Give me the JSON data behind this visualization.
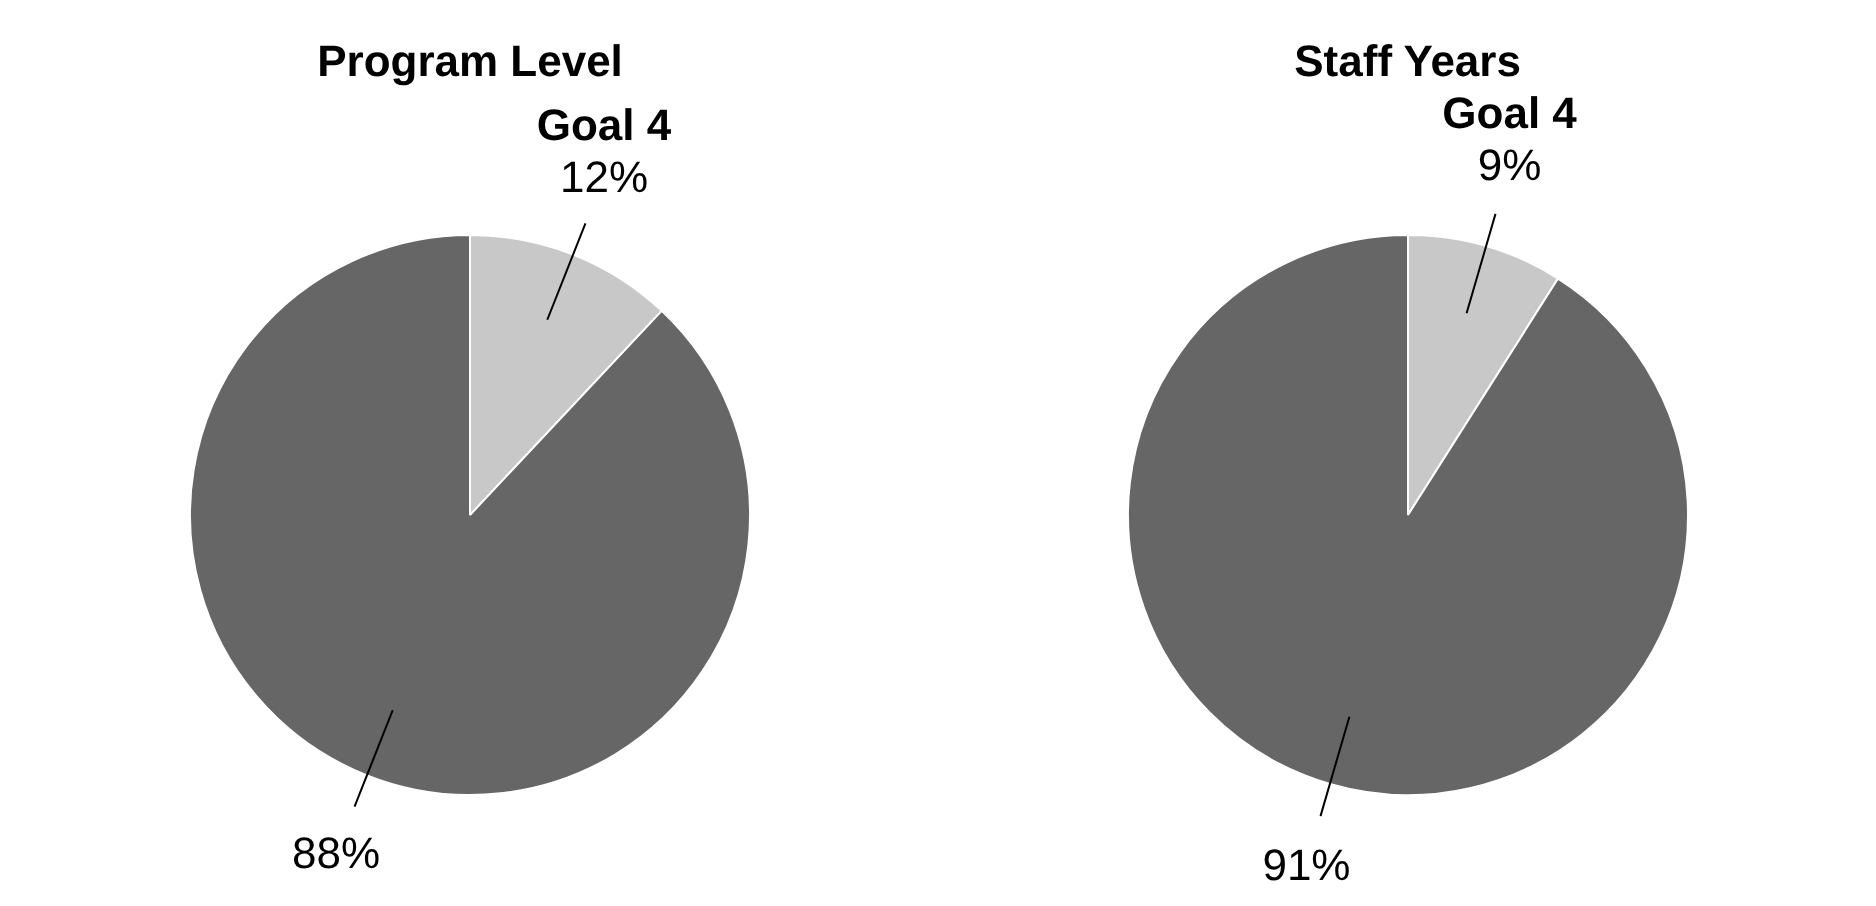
{
  "chart_data": [
    {
      "type": "pie",
      "title": "Program Level",
      "categories": [
        "Goal 4",
        null
      ],
      "values": [
        12,
        88
      ],
      "colors": [
        "#c8c8c8",
        "#666666"
      ],
      "value_labels": [
        "12%",
        "88%"
      ]
    },
    {
      "type": "pie",
      "title": "Staff Years",
      "categories": [
        "Goal 4",
        null
      ],
      "values": [
        9,
        91
      ],
      "colors": [
        "#c8c8c8",
        "#666666"
      ],
      "value_labels": [
        "9%",
        "91%"
      ]
    }
  ]
}
